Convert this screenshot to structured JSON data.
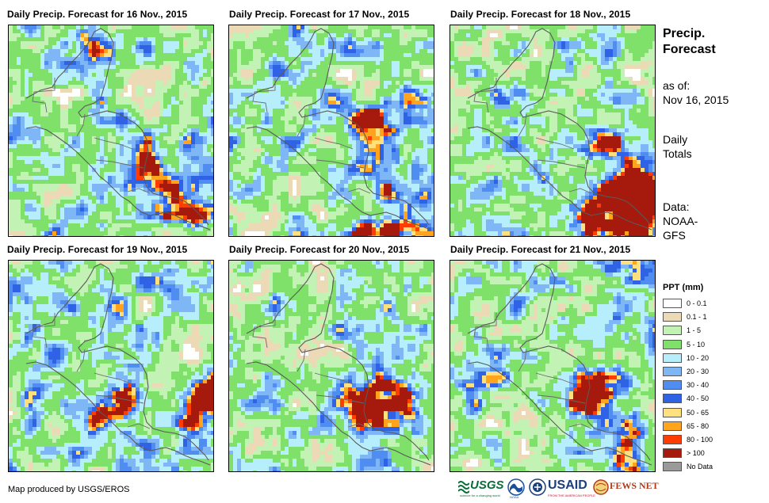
{
  "panels": [
    {
      "title": "Daily Precip. Forecast for 16 Nov., 2015",
      "seed": 11,
      "storms": [
        [
          0.62,
          0.62,
          0.09,
          0.85
        ],
        [
          0.72,
          0.68,
          0.08,
          0.7
        ],
        [
          0.43,
          0.07,
          0.05,
          0.7
        ],
        [
          0.85,
          0.85,
          0.06,
          0.5
        ],
        [
          0.9,
          0.92,
          0.05,
          0.6
        ]
      ]
    },
    {
      "title": "Daily Precip. Forecast for 17 Nov., 2015",
      "seed": 23,
      "storms": [
        [
          0.68,
          0.47,
          0.08,
          0.85
        ],
        [
          0.88,
          0.93,
          0.1,
          0.95
        ],
        [
          0.65,
          0.97,
          0.07,
          0.85
        ],
        [
          0.55,
          0.8,
          0.05,
          0.6
        ],
        [
          0.52,
          0.37,
          0.04,
          0.5
        ]
      ]
    },
    {
      "title": "Daily Precip. Forecast for 18 Nov., 2015",
      "seed": 37,
      "storms": [
        [
          0.93,
          0.68,
          0.09,
          0.95
        ],
        [
          0.88,
          0.93,
          0.12,
          1.0
        ],
        [
          0.72,
          0.88,
          0.08,
          0.75
        ],
        [
          0.75,
          0.58,
          0.06,
          0.7
        ]
      ]
    },
    {
      "title": "Daily Precip. Forecast for 19 Nov., 2015",
      "seed": 41,
      "storms": [
        [
          0.93,
          0.68,
          0.09,
          0.95
        ],
        [
          0.6,
          0.65,
          0.07,
          0.7
        ],
        [
          0.9,
          0.9,
          0.06,
          0.75
        ],
        [
          0.45,
          0.72,
          0.05,
          0.6
        ]
      ]
    },
    {
      "title": "Daily Precip. Forecast for 20 Nov., 2015",
      "seed": 53,
      "storms": [
        [
          0.65,
          0.66,
          0.1,
          0.95
        ],
        [
          0.85,
          0.67,
          0.06,
          0.75
        ],
        [
          0.7,
          0.92,
          0.05,
          0.6
        ]
      ]
    },
    {
      "title": "Daily Precip. Forecast for 21 Nov., 2015",
      "seed": 67,
      "storms": [
        [
          0.62,
          0.62,
          0.08,
          0.85
        ],
        [
          0.75,
          0.65,
          0.08,
          0.8
        ],
        [
          0.68,
          0.9,
          0.07,
          0.75
        ],
        [
          0.85,
          0.92,
          0.06,
          0.7
        ]
      ]
    }
  ],
  "side": {
    "title_line1": "Precip.",
    "title_line2": "Forecast",
    "asof_line1": "as of:",
    "asof_line2": "Nov 16, 2015",
    "totals_line1": "Daily",
    "totals_line2": "Totals",
    "data_line1": "Data:",
    "data_line2": "NOAA-",
    "data_line3": "GFS"
  },
  "legend": {
    "title": "PPT (mm)",
    "items": [
      {
        "label": "0 - 0.1",
        "color": "#ffffff"
      },
      {
        "label": "0.1 - 1",
        "color": "#ecd9b6"
      },
      {
        "label": "1 - 5",
        "color": "#c2f2b4"
      },
      {
        "label": "5 - 10",
        "color": "#7fe06a"
      },
      {
        "label": "10 - 20",
        "color": "#b7eefc"
      },
      {
        "label": "20 - 30",
        "color": "#7fb6f6"
      },
      {
        "label": "30 - 40",
        "color": "#4f8ef0"
      },
      {
        "label": "40 - 50",
        "color": "#2f62e4"
      },
      {
        "label": "50 - 65",
        "color": "#ffe07e"
      },
      {
        "label": "65 - 80",
        "color": "#ffa41c"
      },
      {
        "label": "80 - 100",
        "color": "#ff3d00"
      },
      {
        "label": "> 100",
        "color": "#a51a0c"
      },
      {
        "label": "No Data",
        "color": "#9a9a9a"
      }
    ]
  },
  "credit": "Map produced by USGS/EROS",
  "logos": {
    "usgs": "USGS",
    "usgs_tagline": "science for a changing world",
    "noaa": "NOAA",
    "usaid": "USAID",
    "usaid_tagline": "FROM THE AMERICAN PEOPLE",
    "fewsnet": "FEWS NET"
  }
}
